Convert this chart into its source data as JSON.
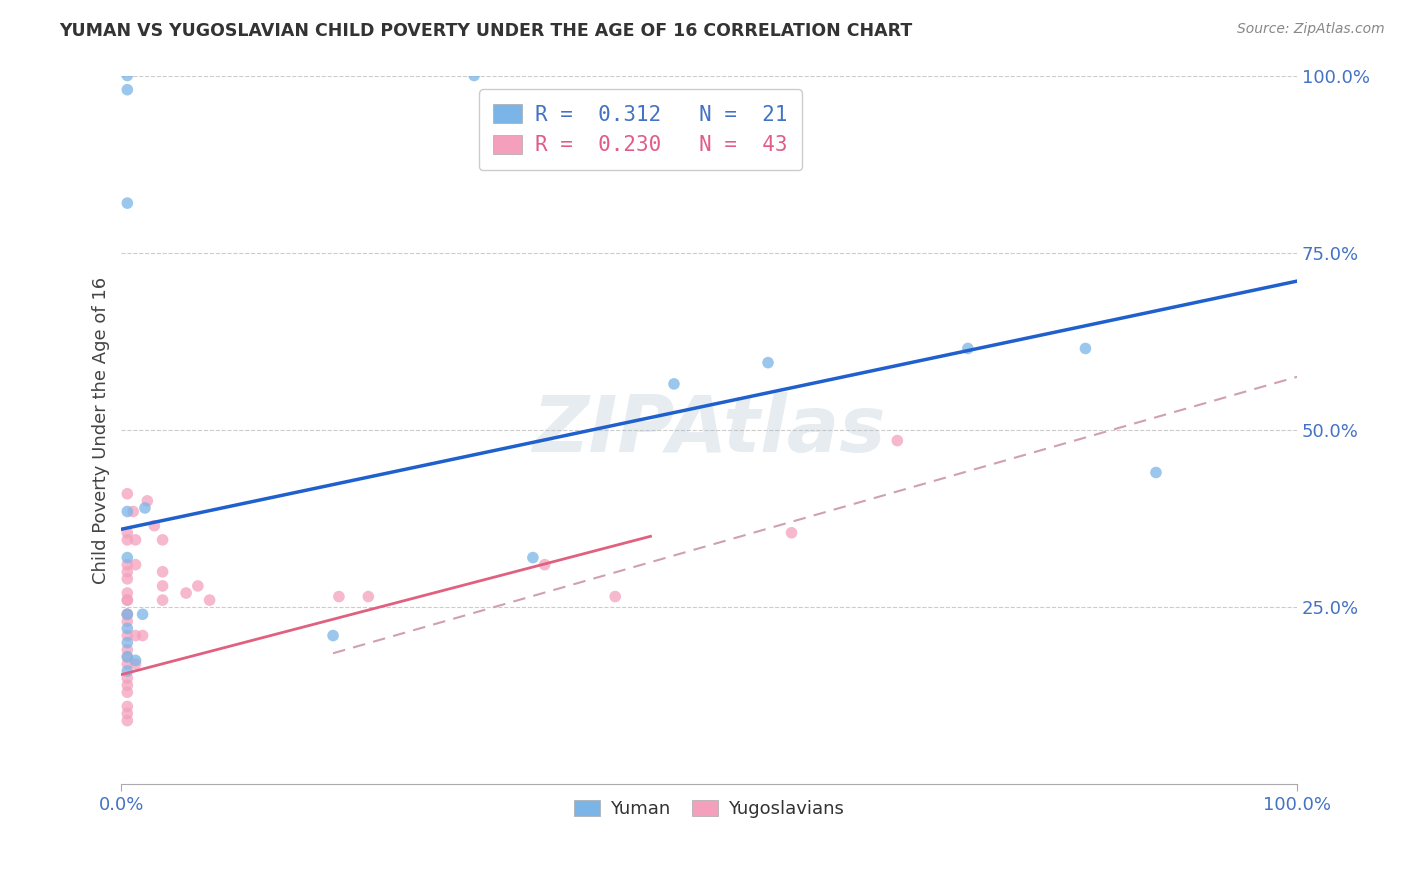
{
  "title": "YUMAN VS YUGOSLAVIAN CHILD POVERTY UNDER THE AGE OF 16 CORRELATION CHART",
  "source": "Source: ZipAtlas.com",
  "ylabel": "Child Poverty Under the Age of 16",
  "legend_top_R1": "R =  0.312   N =  21",
  "legend_top_R2": "R =  0.230   N =  43",
  "legend_top_color1": "#4472C4",
  "legend_top_color2": "#E05C8A",
  "watermark": "ZIPAtlas",
  "background_color": "#FFFFFF",
  "plot_bg_color": "#FFFFFF",
  "grid_color": "#CCCCCC",
  "yuman_color": "#7BB5E8",
  "yugoslavian_color": "#F4A0BC",
  "yuman_line_color": "#2060CC",
  "yugoslavian_solid_line_color": "#E06080",
  "yugoslavian_dashed_line_color": "#D0A0B0",
  "yuman_scatter": [
    [
      0.005,
      0.98
    ],
    [
      0.005,
      1.0
    ],
    [
      0.3,
      1.0
    ],
    [
      0.005,
      0.82
    ],
    [
      0.02,
      0.39
    ],
    [
      0.005,
      0.385
    ],
    [
      0.005,
      0.32
    ],
    [
      0.005,
      0.24
    ],
    [
      0.018,
      0.24
    ],
    [
      0.005,
      0.22
    ],
    [
      0.005,
      0.2
    ],
    [
      0.005,
      0.18
    ],
    [
      0.012,
      0.175
    ],
    [
      0.005,
      0.16
    ],
    [
      0.18,
      0.21
    ],
    [
      0.47,
      0.565
    ],
    [
      0.55,
      0.595
    ],
    [
      0.72,
      0.615
    ],
    [
      0.82,
      0.615
    ],
    [
      0.88,
      0.44
    ],
    [
      0.35,
      0.32
    ]
  ],
  "yugoslavian_scatter": [
    [
      0.005,
      0.41
    ],
    [
      0.01,
      0.385
    ],
    [
      0.005,
      0.355
    ],
    [
      0.005,
      0.345
    ],
    [
      0.012,
      0.345
    ],
    [
      0.005,
      0.31
    ],
    [
      0.005,
      0.3
    ],
    [
      0.005,
      0.29
    ],
    [
      0.012,
      0.31
    ],
    [
      0.005,
      0.27
    ],
    [
      0.005,
      0.26
    ],
    [
      0.005,
      0.26
    ],
    [
      0.005,
      0.24
    ],
    [
      0.005,
      0.24
    ],
    [
      0.005,
      0.23
    ],
    [
      0.005,
      0.21
    ],
    [
      0.012,
      0.21
    ],
    [
      0.018,
      0.21
    ],
    [
      0.005,
      0.19
    ],
    [
      0.005,
      0.18
    ],
    [
      0.005,
      0.17
    ],
    [
      0.012,
      0.17
    ],
    [
      0.005,
      0.15
    ],
    [
      0.005,
      0.14
    ],
    [
      0.005,
      0.13
    ],
    [
      0.005,
      0.11
    ],
    [
      0.005,
      0.1
    ],
    [
      0.005,
      0.09
    ],
    [
      0.022,
      0.4
    ],
    [
      0.028,
      0.365
    ],
    [
      0.035,
      0.345
    ],
    [
      0.035,
      0.3
    ],
    [
      0.035,
      0.28
    ],
    [
      0.035,
      0.26
    ],
    [
      0.055,
      0.27
    ],
    [
      0.065,
      0.28
    ],
    [
      0.075,
      0.26
    ],
    [
      0.185,
      0.265
    ],
    [
      0.21,
      0.265
    ],
    [
      0.36,
      0.31
    ],
    [
      0.42,
      0.265
    ],
    [
      0.57,
      0.355
    ],
    [
      0.66,
      0.485
    ]
  ],
  "yuman_line": {
    "x0": 0.0,
    "y0": 0.36,
    "x1": 1.0,
    "y1": 0.71
  },
  "yugoslavian_solid_line": {
    "x0": 0.0,
    "y0": 0.155,
    "x1": 0.45,
    "y1": 0.35
  },
  "yugoslavian_dashed_line": {
    "x0": 0.18,
    "y0": 0.185,
    "x1": 1.0,
    "y1": 0.575
  },
  "xlim": [
    0.0,
    1.0
  ],
  "ylim": [
    0.0,
    1.0
  ],
  "marker_size": 70
}
